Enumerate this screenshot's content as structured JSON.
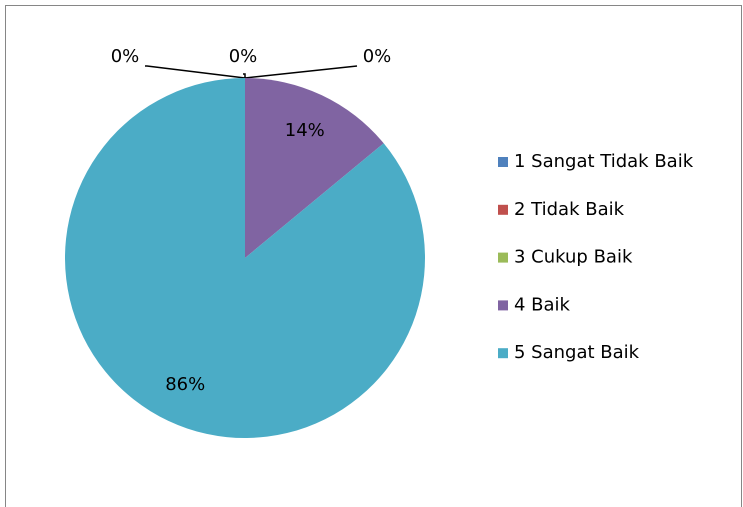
{
  "chart_data": {
    "type": "pie",
    "categories": [
      "1 Sangat Tidak Baik",
      "2 Tidak Baik",
      "3 Cukup Baik",
      "4 Baik",
      "5 Sangat Baik"
    ],
    "values": [
      0,
      0,
      0,
      14,
      86
    ],
    "value_labels": [
      "0%",
      "0%",
      "0%",
      "14%",
      "86%"
    ],
    "colors": [
      "#4f81bd",
      "#c0504d",
      "#9bbb59",
      "#8064a2",
      "#4bacc6"
    ],
    "legend": "right"
  }
}
